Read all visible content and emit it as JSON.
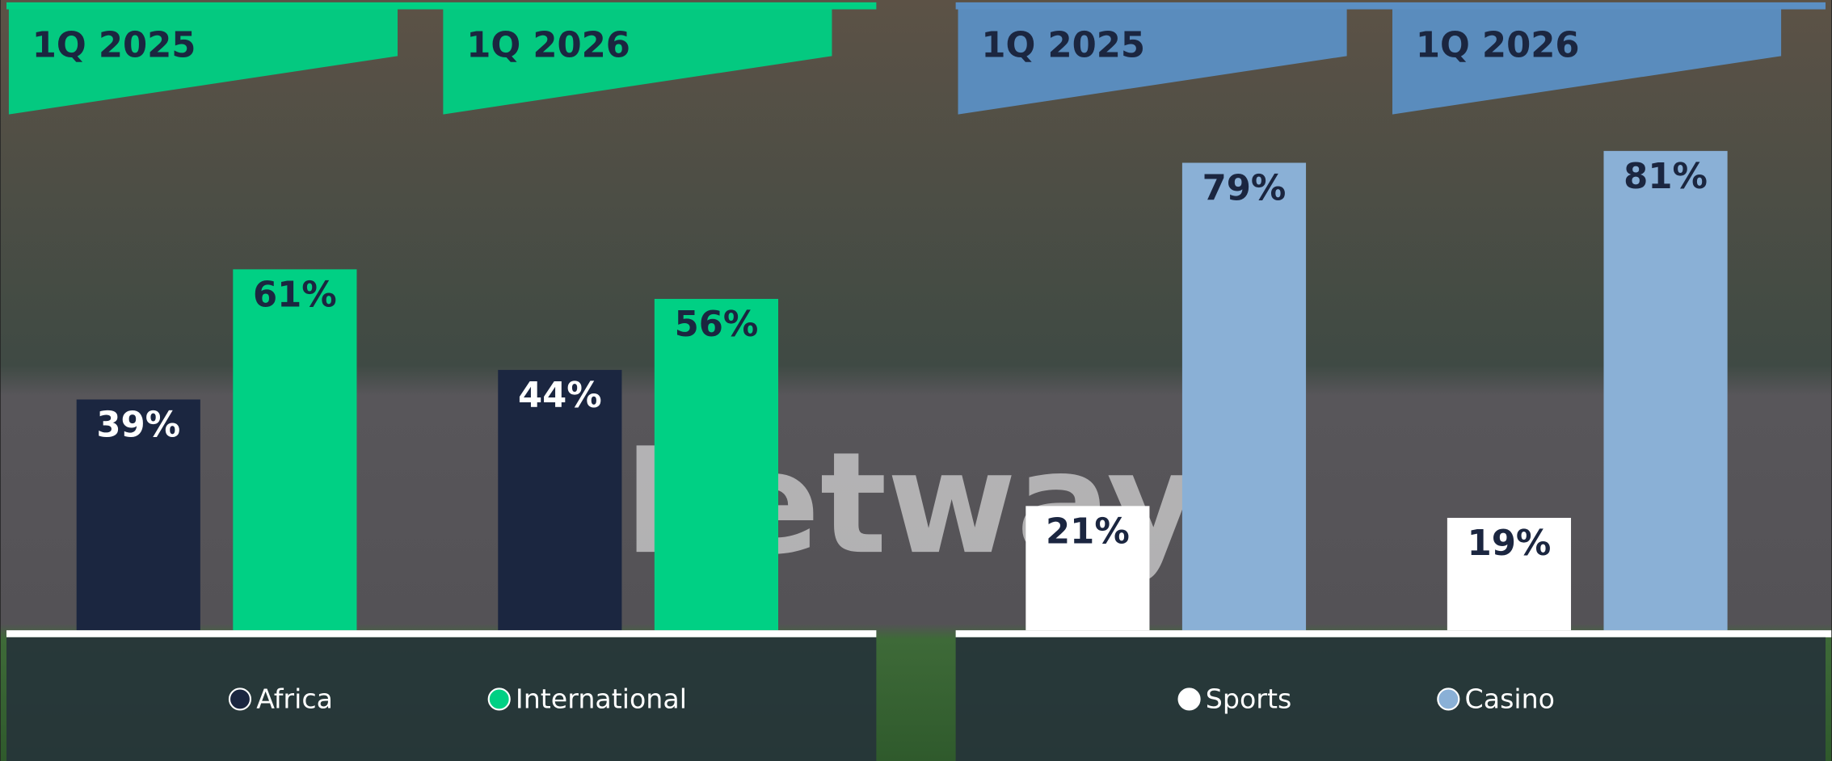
{
  "background_text": "betway",
  "chart_data": [
    {
      "type": "bar",
      "categories": [
        "1Q 2025",
        "1Q 2026"
      ],
      "ylim": [
        0,
        100
      ],
      "accent_color": "#00d084",
      "series": [
        {
          "name": "Africa",
          "color": "#1b2640",
          "values": [
            39,
            44
          ],
          "value_labels": [
            "39%",
            "44%"
          ]
        },
        {
          "name": "International",
          "color": "#00d084",
          "values": [
            61,
            56
          ],
          "value_labels": [
            "61%",
            "56%"
          ]
        }
      ]
    },
    {
      "type": "bar",
      "categories": [
        "1Q 2025",
        "1Q 2026"
      ],
      "ylim": [
        0,
        100
      ],
      "accent_color": "#5b8fc4",
      "series": [
        {
          "name": "Sports",
          "color": "#ffffff",
          "values": [
            21,
            19
          ],
          "value_labels": [
            "21%",
            "19%"
          ]
        },
        {
          "name": "Casino",
          "color": "#8ab0d6",
          "values": [
            79,
            81
          ],
          "value_labels": [
            "79%",
            "81%"
          ]
        }
      ]
    }
  ]
}
